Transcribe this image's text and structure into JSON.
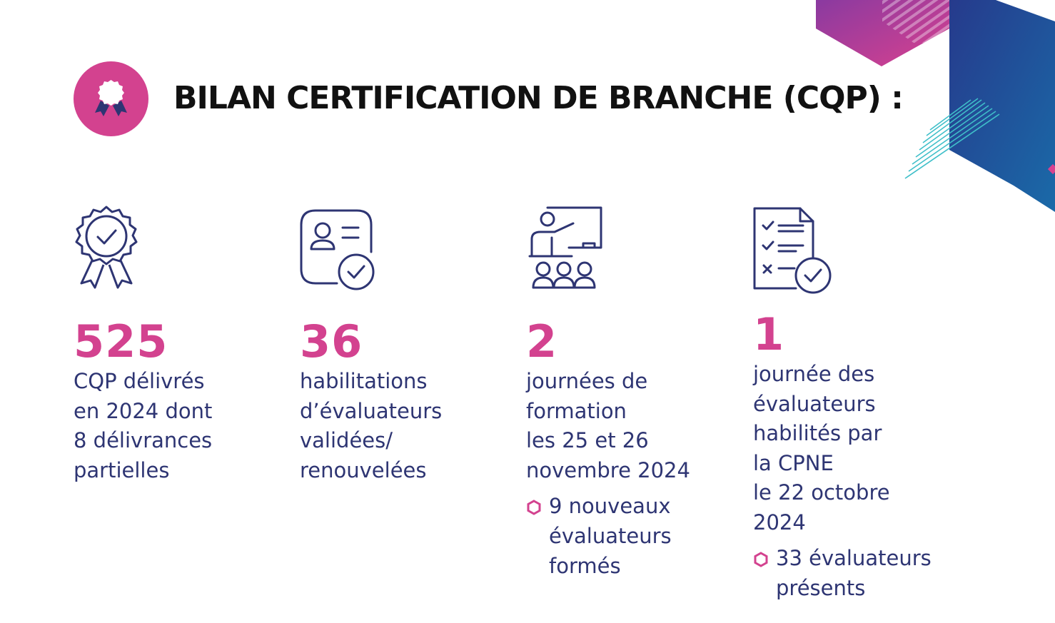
{
  "title": "BILAN CERTIFICATION DE BRANCHE (CQP) :",
  "colors": {
    "accent": "#d3428f",
    "text": "#2e3573",
    "title": "#111111",
    "deco_blue": "#1f3b86",
    "deco_purple": "#9c3c9e"
  },
  "header_icon": "rosette-badge-icon",
  "stats": [
    {
      "icon": "certificate-rosette-icon",
      "value": "525",
      "lines": [
        "CQP délivrés",
        "en 2024 dont",
        "8 délivrances",
        "partielles"
      ],
      "bullet": null
    },
    {
      "icon": "id-card-check-icon",
      "value": "36",
      "lines": [
        "habilitations",
        "d’évaluateurs",
        "validées/",
        "renouvelées"
      ],
      "bullet": null
    },
    {
      "icon": "training-presentation-icon",
      "value": "2",
      "lines": [
        "journées de",
        "formation",
        "les 25 et 26",
        "novembre 2024"
      ],
      "bullet": [
        "9 nouveaux",
        "évaluateurs",
        "formés"
      ]
    },
    {
      "icon": "checklist-check-icon",
      "value": "1",
      "lines": [
        "journée des",
        "évaluateurs",
        "habilités par",
        "la CPNE",
        "le 22 octobre",
        "2024"
      ],
      "bullet": [
        "33 évaluateurs",
        "présents"
      ]
    }
  ]
}
